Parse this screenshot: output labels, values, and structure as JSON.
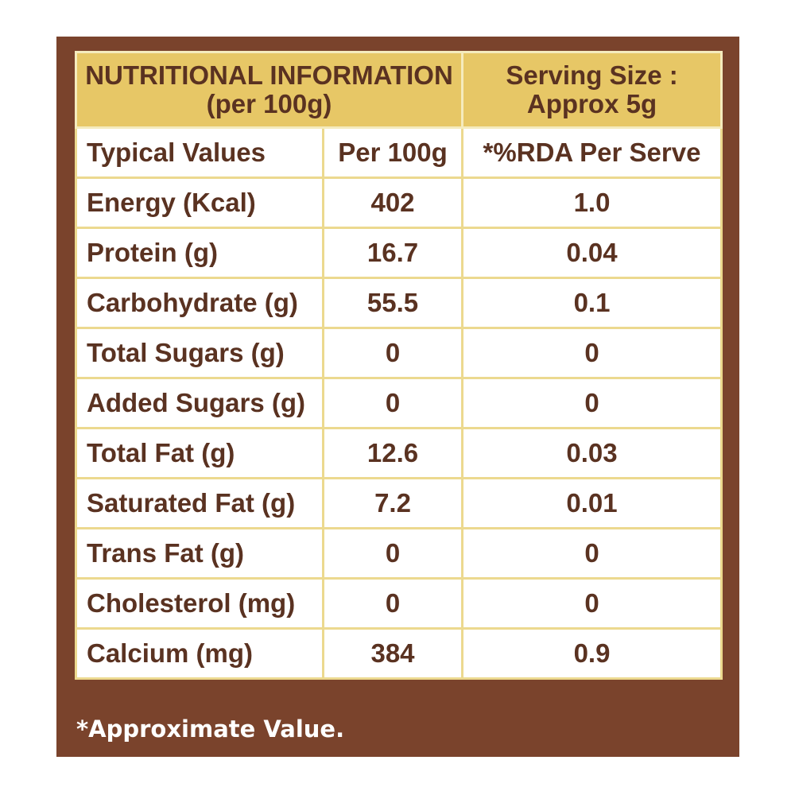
{
  "header": {
    "title_line1": "NUTRITIONAL INFORMATION",
    "title_line2": "(per 100g)",
    "serving_line1": "Serving Size :",
    "serving_line2": "Approx 5g"
  },
  "columns": {
    "values": "Typical Values",
    "per100": "Per 100g",
    "rda": "*%RDA Per Serve"
  },
  "rows": [
    {
      "name": "Energy (Kcal)",
      "per100": "402",
      "rda": "1.0"
    },
    {
      "name": "Protein (g)",
      "per100": "16.7",
      "rda": "0.04"
    },
    {
      "name": "Carbohydrate (g)",
      "per100": "55.5",
      "rda": "0.1"
    },
    {
      "name": "Total Sugars (g)",
      "per100": "0",
      "rda": "0"
    },
    {
      "name": "Added Sugars (g)",
      "per100": "0",
      "rda": "0"
    },
    {
      "name": "Total Fat (g)",
      "per100": "12.6",
      "rda": "0.03"
    },
    {
      "name": "Saturated Fat (g)",
      "per100": "7.2",
      "rda": "0.01"
    },
    {
      "name": "Trans Fat (g)",
      "per100": "0",
      "rda": "0"
    },
    {
      "name": "Cholesterol (mg)",
      "per100": "0",
      "rda": "0"
    },
    {
      "name": "Calcium (mg)",
      "per100": "384",
      "rda": "0.9"
    }
  ],
  "footnote": "*Approximate Value.",
  "colors": {
    "panel": "#7a432c",
    "header": "#e7c766",
    "border": "#ecd98f",
    "text": "#5a3221"
  }
}
